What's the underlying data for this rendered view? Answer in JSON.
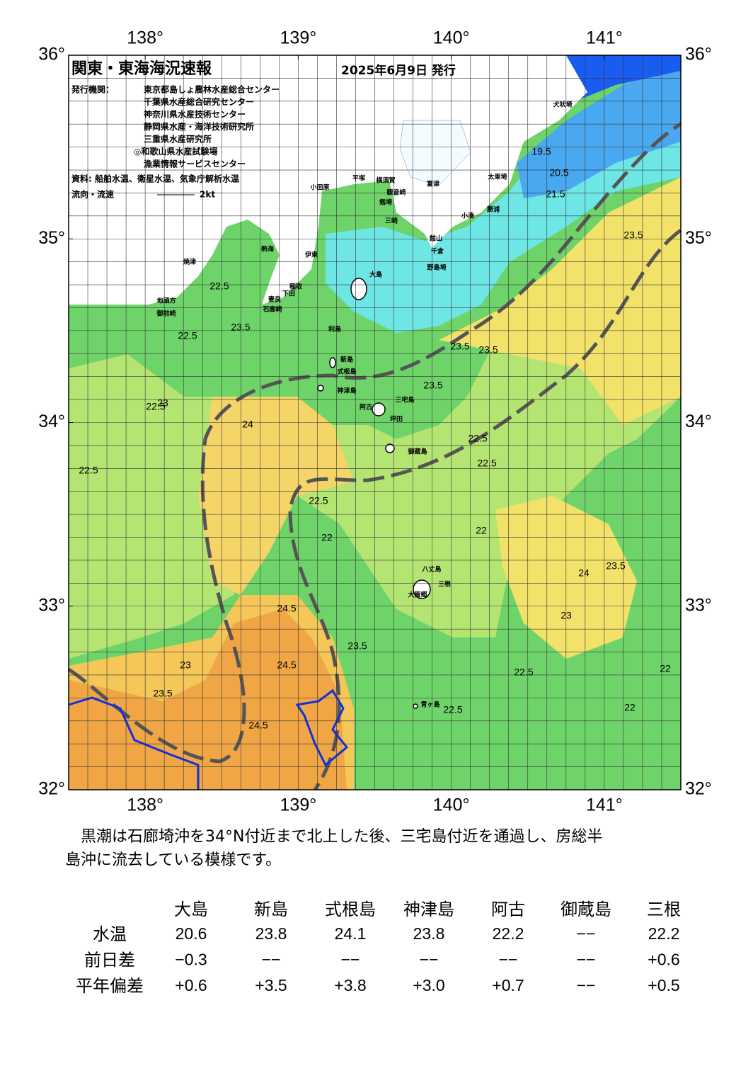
{
  "header": {
    "title": "関東・東海海況速報",
    "date": "2025年6月9日 発行",
    "issuers_label": "発行機関：",
    "issuers": [
      "東京都島しょ農林水産総合センター",
      "千葉県水産総合研究センター",
      "神奈川県水産技術センター",
      "静岡県水産・海洋技術研究所",
      "三重県水産研究所",
      "◎和歌山県水産試験場",
      "漁業情報サービスセンター"
    ],
    "source": "資料: 船舶水温、衛星水温、気象庁解析水温",
    "legend_label": "流向・流速",
    "legend_scale": "2kt"
  },
  "map": {
    "lon_ticks": [
      {
        "value": 138,
        "label": "138°"
      },
      {
        "value": 139,
        "label": "139°"
      },
      {
        "value": 140,
        "label": "140°"
      },
      {
        "value": 141,
        "label": "141°"
      }
    ],
    "lat_ticks": [
      {
        "value": 36,
        "label": "36°"
      },
      {
        "value": 35,
        "label": "35°"
      },
      {
        "value": 34,
        "label": "34°"
      },
      {
        "value": 33,
        "label": "33°"
      },
      {
        "value": 32,
        "label": "32°"
      }
    ],
    "places": [
      "犬吠埼",
      "太東埼",
      "勝浦",
      "小湊",
      "館山",
      "千倉",
      "野島埼",
      "三崎",
      "観音崎",
      "富津",
      "剱埼",
      "横須賀",
      "平塚",
      "小田原",
      "大島",
      "利島",
      "新島",
      "式根島",
      "神津島",
      "三宅島",
      "阿古",
      "坪田",
      "御蔵島",
      "八丈島",
      "三根",
      "大賀郷",
      "青ヶ島",
      "石廊崎",
      "下田",
      "稲取",
      "伊東",
      "熱海",
      "焼津",
      "御前崎",
      "地頭方",
      "妻良"
    ],
    "contour_labels": [
      "19.5",
      "20.5",
      "21.5",
      "22.5",
      "23.5",
      "22.5",
      "23.5",
      "23",
      "22.5",
      "24",
      "23.5",
      "23.5",
      "23.5",
      "22.5",
      "22.5",
      "22.5",
      "22",
      "22",
      "24",
      "23.5",
      "24.5",
      "24.5",
      "24.5",
      "23.5",
      "22.5",
      "22",
      "22",
      "22.5",
      "23",
      "23.5",
      "22.5",
      "23"
    ]
  },
  "comment": [
    "黒潮は石廊埼沖を34°N付近まで北上した後、三宅島付近を通過し、房総半",
    "島沖に流去している模様です。"
  ],
  "table": {
    "columns": [
      "大島",
      "新島",
      "式根島",
      "神津島",
      "阿古",
      "御蔵島",
      "三根"
    ],
    "rows": [
      {
        "label": "水温",
        "cells": [
          "20.6",
          "23.8",
          "24.1",
          "23.8",
          "22.2",
          "−−",
          "22.2"
        ]
      },
      {
        "label": "前日差",
        "cells": [
          "−0.3",
          "−−",
          "−−",
          "−−",
          "−−",
          "−−",
          "+0.6"
        ]
      },
      {
        "label": "平年偏差",
        "cells": [
          "+0.6",
          "+3.5",
          "+3.8",
          "+3.0",
          "+0.7",
          "−−",
          "+0.5"
        ]
      }
    ]
  }
}
